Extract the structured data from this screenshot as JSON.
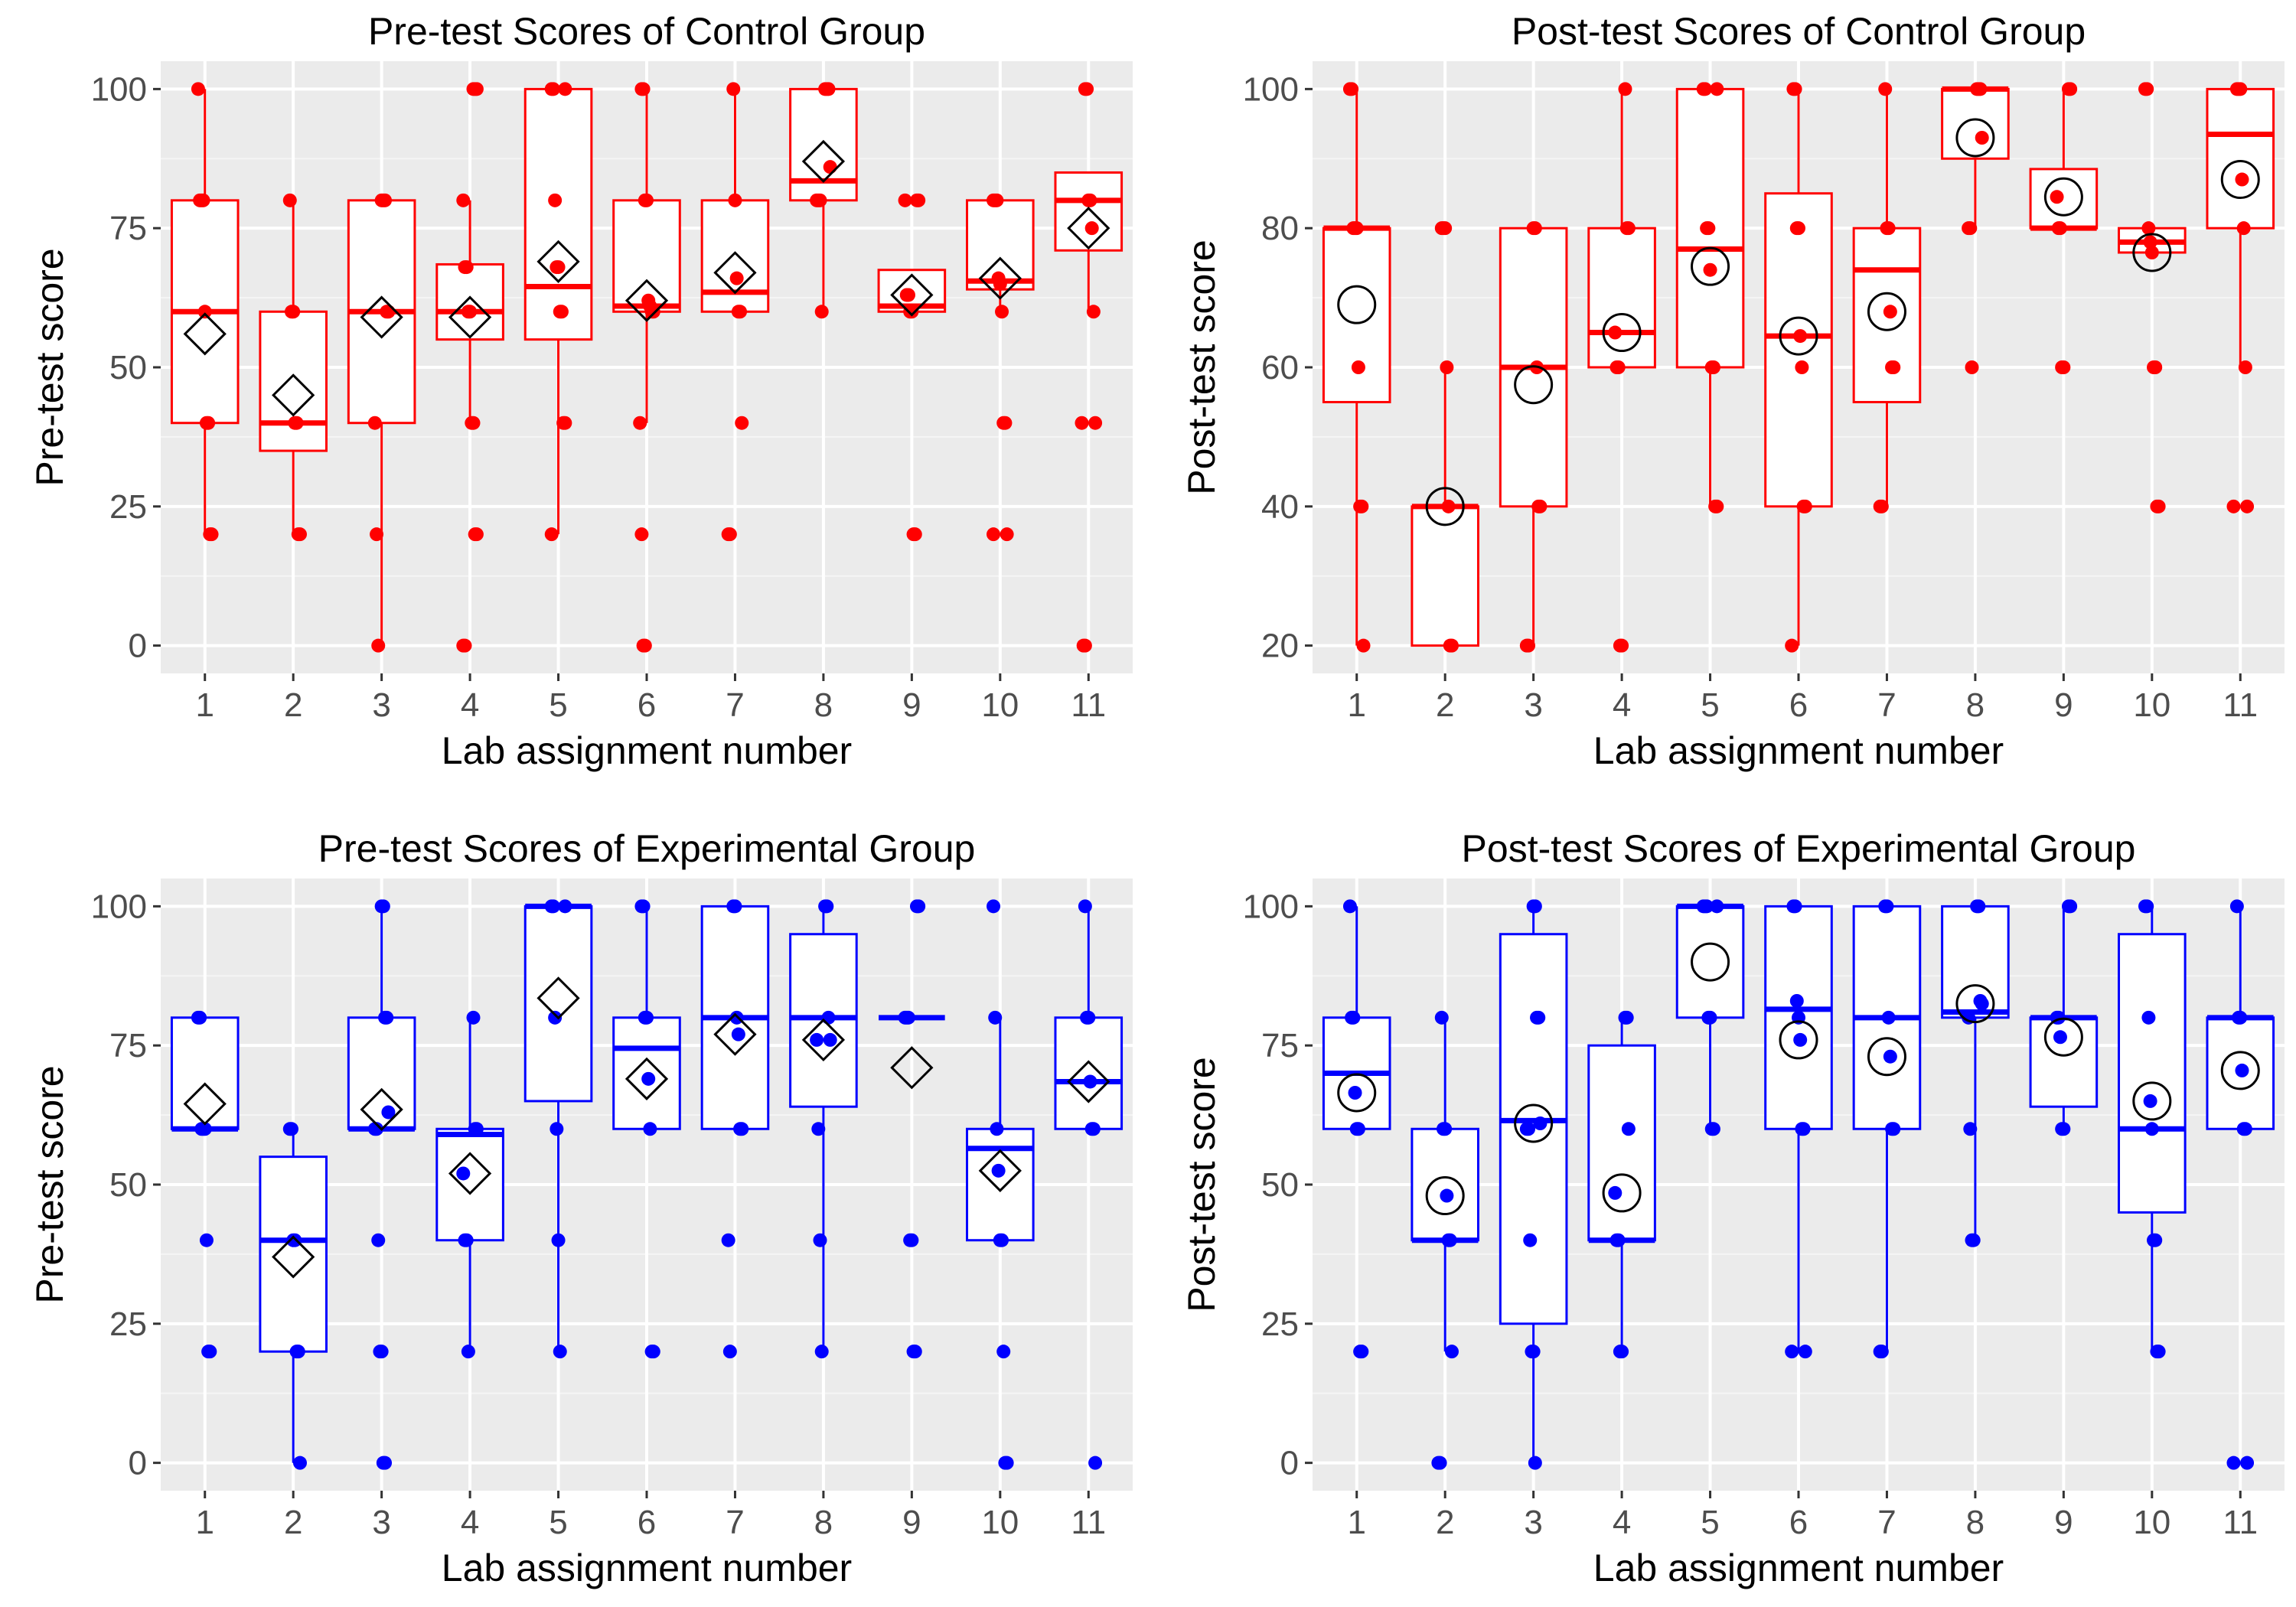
{
  "chart_data": [
    {
      "type": "box",
      "title": "Pre-test Scores of Control Group",
      "xlabel": "Lab assignment number",
      "ylabel": "Pre-test score",
      "categories": [
        "1",
        "2",
        "3",
        "4",
        "5",
        "6",
        "7",
        "8",
        "9",
        "10",
        "11"
      ],
      "yticks": [
        "0",
        "25",
        "50",
        "75",
        "100"
      ],
      "ylim": [
        -5,
        105
      ],
      "color": "#ff0000",
      "mean_marker": "diamond",
      "grid": true,
      "boxes": [
        {
          "q1": 40,
          "median": 60,
          "q3": 80,
          "low": 20,
          "high": 100,
          "mean": 56
        },
        {
          "q1": 35,
          "median": 40,
          "q3": 60,
          "low": 20,
          "high": 80,
          "mean": 45
        },
        {
          "q1": 40,
          "median": 60,
          "q3": 80,
          "low": 0,
          "high": 80,
          "mean": 59
        },
        {
          "q1": 55,
          "median": 60,
          "q3": 68.5,
          "low": 40,
          "high": 80,
          "mean": 59
        },
        {
          "q1": 55,
          "median": 64.5,
          "q3": 100,
          "low": 20,
          "high": 100,
          "mean": 69
        },
        {
          "q1": 60,
          "median": 61,
          "q3": 80,
          "low": 40,
          "high": 100,
          "mean": 62
        },
        {
          "q1": 60,
          "median": 63.5,
          "q3": 80,
          "low": 60,
          "high": 100,
          "mean": 67
        },
        {
          "q1": 80,
          "median": 83.5,
          "q3": 100,
          "low": 60,
          "high": 100,
          "mean": 87
        },
        {
          "q1": 60,
          "median": 61,
          "q3": 67.5,
          "low": 60,
          "high": 67.5,
          "mean": 63
        },
        {
          "q1": 64,
          "median": 65.5,
          "q3": 80,
          "low": 60,
          "high": 80,
          "mean": 66
        },
        {
          "q1": 71,
          "median": 80,
          "q3": 85,
          "low": 60,
          "high": 85,
          "mean": 75
        }
      ],
      "points": [
        [
          100,
          80,
          80,
          80,
          60,
          40,
          40,
          20,
          20
        ],
        [
          80,
          60,
          60,
          40,
          40,
          20,
          20
        ],
        [
          80,
          80,
          80,
          60,
          60,
          40,
          20,
          0
        ],
        [
          100,
          100,
          100,
          80,
          68,
          68,
          60,
          60,
          40,
          40,
          20,
          20,
          0,
          0
        ],
        [
          100,
          100,
          100,
          80,
          68,
          68,
          60,
          60,
          40,
          40,
          20
        ],
        [
          100,
          100,
          80,
          80,
          62,
          61,
          60,
          60,
          40,
          20,
          0,
          0
        ],
        [
          100,
          80,
          66,
          60,
          60,
          40,
          20,
          20
        ],
        [
          100,
          100,
          100,
          86,
          80,
          80,
          80,
          60
        ],
        [
          80,
          80,
          80,
          63,
          63,
          60,
          60,
          20,
          20
        ],
        [
          80,
          80,
          80,
          66,
          65,
          60,
          40,
          40,
          20,
          20
        ],
        [
          100,
          100,
          80,
          80,
          75,
          60,
          40,
          40,
          0,
          0
        ]
      ]
    },
    {
      "type": "box",
      "title": "Post-test Scores of Control Group",
      "xlabel": "Lab assignment number",
      "ylabel": "Post-test score",
      "categories": [
        "1",
        "2",
        "3",
        "4",
        "5",
        "6",
        "7",
        "8",
        "9",
        "10",
        "11"
      ],
      "yticks": [
        "20",
        "40",
        "60",
        "80",
        "100"
      ],
      "ylim": [
        16,
        104
      ],
      "color": "#ff0000",
      "mean_marker": "circle",
      "grid": true,
      "boxes": [
        {
          "q1": 55,
          "median": 80,
          "q3": 80,
          "low": 20,
          "high": 100,
          "mean": 69
        },
        {
          "q1": 20,
          "median": 40,
          "q3": 40,
          "low": 20,
          "high": 60,
          "mean": 40
        },
        {
          "q1": 40,
          "median": 60,
          "q3": 80,
          "low": 20,
          "high": 80,
          "mean": 57.5
        },
        {
          "q1": 60,
          "median": 65,
          "q3": 80,
          "low": 60,
          "high": 100,
          "mean": 65
        },
        {
          "q1": 60,
          "median": 77,
          "q3": 100,
          "low": 40,
          "high": 100,
          "mean": 74.5
        },
        {
          "q1": 40,
          "median": 64.5,
          "q3": 85,
          "low": 20,
          "high": 100,
          "mean": 64.5
        },
        {
          "q1": 55,
          "median": 74,
          "q3": 80,
          "low": 40,
          "high": 100,
          "mean": 68
        },
        {
          "q1": 90,
          "median": 100,
          "q3": 100,
          "low": 80,
          "high": 100,
          "mean": 93
        },
        {
          "q1": 80,
          "median": 80,
          "q3": 88.5,
          "low": 80,
          "high": 100,
          "mean": 84.5
        },
        {
          "q1": 76.5,
          "median": 78,
          "q3": 80,
          "low": 76.5,
          "high": 80,
          "mean": 76.5
        },
        {
          "q1": 80,
          "median": 93.5,
          "q3": 100,
          "low": 60,
          "high": 100,
          "mean": 87
        }
      ],
      "points": [
        [
          100,
          100,
          80,
          80,
          80,
          60,
          40,
          40,
          20
        ],
        [
          80,
          80,
          80,
          60,
          40,
          20,
          20
        ],
        [
          80,
          80,
          60,
          40,
          40,
          20,
          20
        ],
        [
          100,
          80,
          80,
          65,
          60,
          60,
          20,
          20
        ],
        [
          100,
          100,
          100,
          80,
          80,
          74,
          60,
          60,
          40,
          40
        ],
        [
          100,
          100,
          80,
          80,
          64.5,
          60,
          40,
          40,
          20
        ],
        [
          100,
          80,
          80,
          68,
          60,
          60,
          40,
          40
        ],
        [
          100,
          100,
          100,
          93,
          80,
          80,
          60
        ],
        [
          100,
          100,
          84.5,
          80,
          80,
          60,
          60
        ],
        [
          100,
          100,
          80,
          78,
          76.5,
          60,
          60,
          40,
          40
        ],
        [
          100,
          100,
          100,
          87,
          80,
          60,
          40,
          40
        ]
      ]
    },
    {
      "type": "box",
      "title": "Pre-test Scores of Experimental Group",
      "xlabel": "Lab assignment number",
      "ylabel": "Pre-test score",
      "categories": [
        "1",
        "2",
        "3",
        "4",
        "5",
        "6",
        "7",
        "8",
        "9",
        "10",
        "11"
      ],
      "yticks": [
        "0",
        "25",
        "50",
        "75",
        "100"
      ],
      "ylim": [
        -5,
        105
      ],
      "color": "#0000ff",
      "mean_marker": "diamond",
      "grid": true,
      "boxes": [
        {
          "q1": 60,
          "median": 60,
          "q3": 80,
          "low": 60,
          "high": 80,
          "mean": 64.5
        },
        {
          "q1": 20,
          "median": 40,
          "q3": 55,
          "low": 0,
          "high": 60,
          "mean": 37
        },
        {
          "q1": 60,
          "median": 60,
          "q3": 80,
          "low": 60,
          "high": 100,
          "mean": 63.5
        },
        {
          "q1": 40,
          "median": 59,
          "q3": 60,
          "low": 20,
          "high": 80,
          "mean": 52
        },
        {
          "q1": 65,
          "median": 100,
          "q3": 100,
          "low": 20,
          "high": 100,
          "mean": 83.5
        },
        {
          "q1": 60,
          "median": 74.5,
          "q3": 80,
          "low": 60,
          "high": 100,
          "mean": 69
        },
        {
          "q1": 60,
          "median": 80,
          "q3": 100,
          "low": 60,
          "high": 100,
          "mean": 77
        },
        {
          "q1": 64,
          "median": 80,
          "q3": 95,
          "low": 20,
          "high": 100,
          "mean": 76
        },
        {
          "q1": 80,
          "median": 80,
          "q3": 80,
          "low": 80,
          "high": 80,
          "mean": 71
        },
        {
          "q1": 40,
          "median": 56.5,
          "q3": 60,
          "low": 40,
          "high": 80,
          "mean": 52.5
        },
        {
          "q1": 60,
          "median": 68.5,
          "q3": 80,
          "low": 60,
          "high": 100,
          "mean": 68.5
        }
      ],
      "points": [
        [
          80,
          80,
          60,
          60,
          60,
          40,
          20,
          20
        ],
        [
          60,
          60,
          40,
          40,
          20,
          20,
          0
        ],
        [
          100,
          100,
          80,
          80,
          63,
          60,
          60,
          40,
          20,
          20,
          0,
          0
        ],
        [
          80,
          60,
          60,
          52,
          40,
          40,
          20
        ],
        [
          100,
          100,
          100,
          80,
          60,
          40,
          20
        ],
        [
          100,
          100,
          80,
          80,
          69,
          60,
          20,
          20
        ],
        [
          100,
          100,
          80,
          77,
          60,
          60,
          40,
          20
        ],
        [
          100,
          100,
          80,
          76,
          76,
          60,
          40,
          20
        ],
        [
          100,
          100,
          80,
          80,
          80,
          40,
          40,
          20,
          20
        ],
        [
          100,
          80,
          60,
          52.5,
          40,
          40,
          20,
          0,
          0
        ],
        [
          100,
          80,
          80,
          68.5,
          60,
          60,
          0
        ]
      ]
    },
    {
      "type": "box",
      "title": "Post-test Scores of Experimental Group",
      "xlabel": "Lab assignment number",
      "ylabel": "Post-test score",
      "categories": [
        "1",
        "2",
        "3",
        "4",
        "5",
        "6",
        "7",
        "8",
        "9",
        "10",
        "11"
      ],
      "yticks": [
        "0",
        "25",
        "50",
        "75",
        "100"
      ],
      "ylim": [
        -5,
        105
      ],
      "color": "#0000ff",
      "mean_marker": "circle",
      "grid": true,
      "boxes": [
        {
          "q1": 60,
          "median": 70,
          "q3": 80,
          "low": 60,
          "high": 100,
          "mean": 66.5
        },
        {
          "q1": 40,
          "median": 40,
          "q3": 60,
          "low": 20,
          "high": 80,
          "mean": 48
        },
        {
          "q1": 25,
          "median": 61.5,
          "q3": 95,
          "low": 0,
          "high": 100,
          "mean": 61
        },
        {
          "q1": 40,
          "median": 40,
          "q3": 75,
          "low": 20,
          "high": 80,
          "mean": 48.5
        },
        {
          "q1": 80,
          "median": 100,
          "q3": 100,
          "low": 60,
          "high": 100,
          "mean": 90
        },
        {
          "q1": 60,
          "median": 81.5,
          "q3": 100,
          "low": 20,
          "high": 100,
          "mean": 76
        },
        {
          "q1": 60,
          "median": 80,
          "q3": 100,
          "low": 20,
          "high": 100,
          "mean": 73
        },
        {
          "q1": 80,
          "median": 81,
          "q3": 100,
          "low": 40,
          "high": 100,
          "mean": 82.5
        },
        {
          "q1": 64,
          "median": 80,
          "q3": 80,
          "low": 60,
          "high": 100,
          "mean": 76.5
        },
        {
          "q1": 45,
          "median": 60,
          "q3": 95,
          "low": 20,
          "high": 100,
          "mean": 65
        },
        {
          "q1": 60,
          "median": 80,
          "q3": 80,
          "low": 60,
          "high": 100,
          "mean": 70.5
        }
      ],
      "points": [
        [
          100,
          80,
          80,
          66.5,
          60,
          60,
          20,
          20
        ],
        [
          80,
          60,
          60,
          48,
          40,
          40,
          20,
          0,
          0
        ],
        [
          100,
          100,
          80,
          80,
          61,
          60,
          60,
          40,
          20,
          20,
          0
        ],
        [
          80,
          80,
          60,
          48.5,
          40,
          40,
          20,
          20
        ],
        [
          100,
          100,
          100,
          100,
          80,
          80,
          60,
          60
        ],
        [
          100,
          100,
          83,
          80,
          76,
          60,
          60,
          20,
          20
        ],
        [
          100,
          100,
          80,
          73,
          60,
          60,
          20,
          20
        ],
        [
          100,
          100,
          83,
          82.5,
          80,
          60,
          40,
          40
        ],
        [
          100,
          100,
          80,
          80,
          76.5,
          60,
          60
        ],
        [
          100,
          100,
          80,
          65,
          60,
          40,
          40,
          20,
          20
        ],
        [
          100,
          80,
          80,
          70.5,
          60,
          60,
          0,
          0
        ]
      ]
    }
  ]
}
